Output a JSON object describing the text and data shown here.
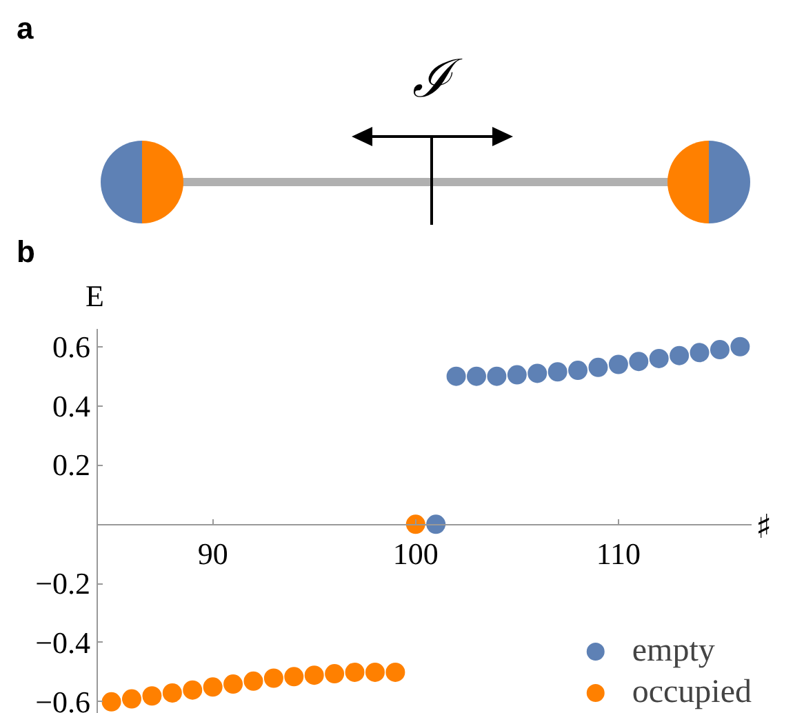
{
  "chart_data": {
    "type": "scatter",
    "xlabel": "♯",
    "ylabel": "E",
    "annotations": [
      "a",
      "ℐ",
      "b"
    ],
    "xlim": [
      84.3,
      116.6
    ],
    "ylim": [
      -0.64,
      0.66
    ],
    "xticks": [
      90,
      100,
      110
    ],
    "yticks": [
      -0.6,
      -0.4,
      -0.2,
      0.2,
      0.4,
      0.6
    ],
    "marker": "circle",
    "grid": false,
    "legend": "bottom right",
    "series": [
      {
        "name": "empty",
        "color": "#5e81b5",
        "x": [
          101,
          102,
          103,
          104,
          105,
          106,
          107,
          108,
          109,
          110,
          111,
          112,
          113,
          114,
          115,
          116
        ],
        "values": [
          0,
          0.5,
          0.5,
          0.5,
          0.505,
          0.51,
          0.515,
          0.52,
          0.53,
          0.54,
          0.55,
          0.56,
          0.57,
          0.58,
          0.59,
          0.6
        ]
      },
      {
        "name": "occupied",
        "color": "#ff8000",
        "x": [
          85,
          86,
          87,
          88,
          89,
          90,
          91,
          92,
          93,
          94,
          95,
          96,
          97,
          98,
          99,
          100
        ],
        "values": [
          -0.6,
          -0.59,
          -0.58,
          -0.57,
          -0.56,
          -0.55,
          -0.54,
          -0.53,
          -0.52,
          -0.515,
          -0.51,
          -0.505,
          -0.5,
          -0.5,
          -0.5,
          0
        ]
      }
    ]
  }
}
